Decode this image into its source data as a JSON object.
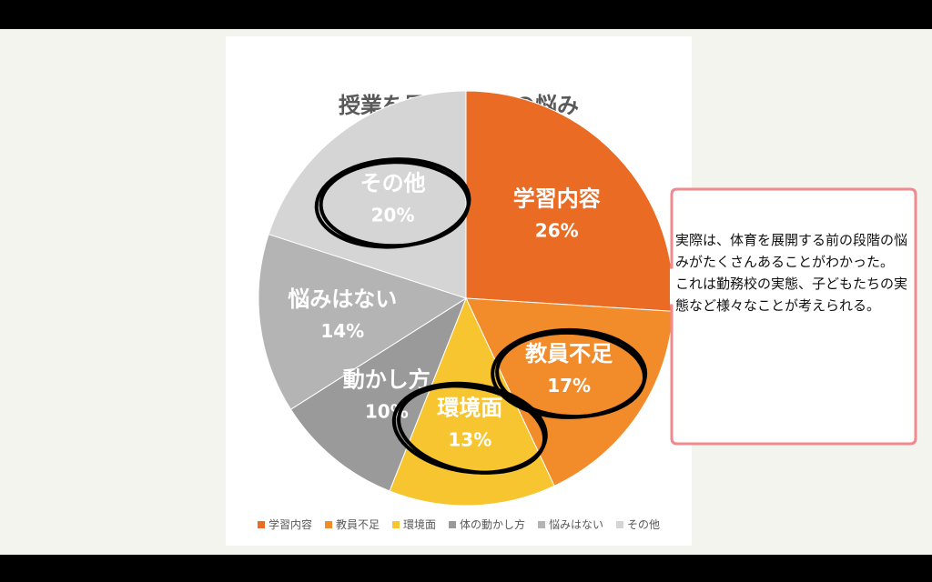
{
  "chart_data": {
    "type": "pie",
    "title": "授業を展開する際の悩み",
    "slices": [
      {
        "name": "学習内容",
        "label": "学習内容",
        "value": 26,
        "pct": "26%",
        "color": "#e96b24"
      },
      {
        "name": "教員不足",
        "label": "教員不足",
        "value": 17,
        "pct": "17%",
        "color": "#f28b2a"
      },
      {
        "name": "環境面",
        "label": "環境面",
        "value": 13,
        "pct": "13%",
        "color": "#f7c52f"
      },
      {
        "name": "体の動かし方",
        "label": "動かし方",
        "value": 10,
        "pct": "10%",
        "color": "#9a9a9a"
      },
      {
        "name": "悩みはない",
        "label": "悩みはない",
        "value": 14,
        "pct": "14%",
        "color": "#b4b4b4"
      },
      {
        "name": "その他",
        "label": "その他",
        "value": 20,
        "pct": "20%",
        "color": "#d5d5d5"
      }
    ],
    "legend_position": "bottom"
  },
  "callout": {
    "lines": [
      "実際は、体育を展開する前の段階の悩みがたくさんあることがわかった。",
      "これは勤務校の実態、子どもたちの実態など様々なことが考えられる。"
    ]
  }
}
